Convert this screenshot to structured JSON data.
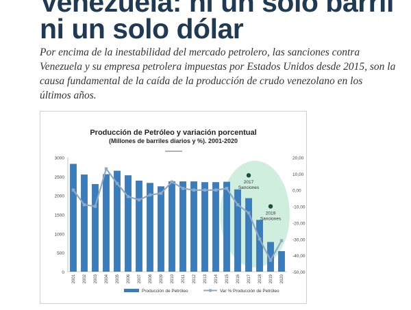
{
  "article": {
    "headline_line1": "Venezuela: ni un solo barril",
    "headline_line2": "ni un solo dólar",
    "lead": "Por encima de la inestabilidad del mercado petrolero, las sanciones contra Venezuela y su empresa petrolera impuestas por Estados Unidos desde 2015, son la causa fundamental de la caída de la producción de crudo venezolano en los últimos años."
  },
  "chart_data": {
    "type": "bar",
    "title": "Producción de Petróleo y variación porcentual",
    "subtitle": "(Millones de barriles diarios y %). 2001-2020",
    "categories": [
      "2001",
      "2002",
      "2003",
      "2004",
      "2005",
      "2006",
      "2007",
      "2008",
      "2009",
      "2010",
      "2011",
      "2012",
      "2013",
      "2014",
      "2015",
      "2016",
      "2017",
      "2018",
      "2019",
      "2020"
    ],
    "series": [
      {
        "name": "Producción de Petróleo",
        "type": "bar",
        "axis": "left",
        "color": "#3b7dbb",
        "values": [
          2830,
          2550,
          2300,
          2560,
          2650,
          2530,
          2390,
          2330,
          2240,
          2370,
          2370,
          2370,
          2350,
          2350,
          2360,
          2160,
          1930,
          1360,
          780,
          540
        ]
      },
      {
        "name": "Var % Producción de Petróleo",
        "type": "line",
        "axis": "right",
        "color": "#8fa8c4",
        "values": [
          0,
          -9,
          -10,
          13,
          4,
          -4,
          -6,
          -3,
          -2,
          5,
          1,
          0,
          0,
          0,
          1,
          -9,
          -14,
          -30,
          -43,
          -31
        ]
      }
    ],
    "left_axis": {
      "min": 0,
      "max": 3000,
      "ticks": [
        0,
        500,
        1000,
        1500,
        2000,
        2500,
        3000
      ],
      "tick_labels": [
        "0",
        "500",
        "1000",
        "1500",
        "2000",
        "2500",
        "3000"
      ]
    },
    "right_axis": {
      "min": -50,
      "max": 20,
      "ticks": [
        20,
        10,
        0,
        -10,
        -20,
        -30,
        -40,
        -50
      ],
      "tick_labels": [
        "20,00",
        "10,00",
        "0,00",
        "-10,00",
        "-20,00",
        "-30,00",
        "-40,00",
        "-50,00"
      ]
    },
    "annotations": [
      {
        "year": "2017",
        "label": "Sanciones",
        "var_value": 9
      },
      {
        "year": "2019",
        "label": "Sanciones",
        "var_value": -10
      }
    ],
    "highlight_color": "#bfe8d2",
    "legend_position": "bottom",
    "grid": false
  }
}
